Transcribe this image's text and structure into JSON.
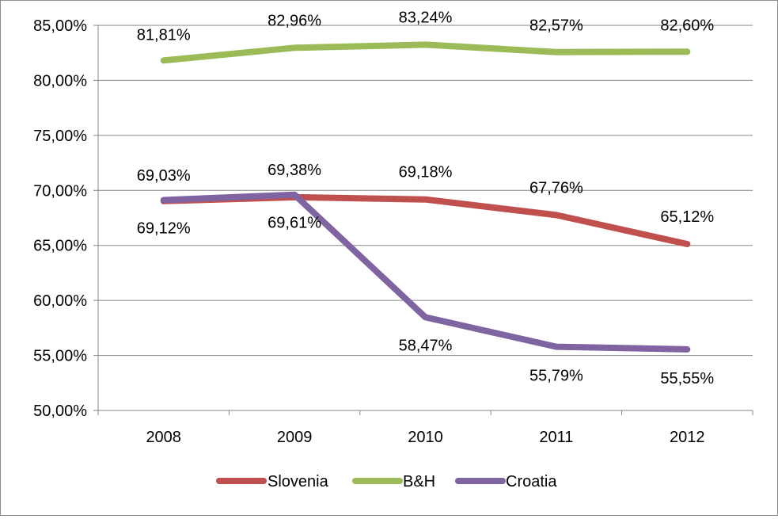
{
  "chart_data": {
    "type": "line",
    "title": "",
    "xlabel": "",
    "ylabel": "",
    "categories": [
      "2008",
      "2009",
      "2010",
      "2011",
      "2012"
    ],
    "ylim": [
      50,
      85
    ],
    "y_ticks": [
      50,
      55,
      60,
      65,
      70,
      75,
      80,
      85
    ],
    "y_tick_labels": [
      "50,00%",
      "55,00%",
      "60,00%",
      "65,00%",
      "70,00%",
      "75,00%",
      "80,00%",
      "85,00%"
    ],
    "grid": true,
    "legend_position": "bottom",
    "series": [
      {
        "name": "Slovenia",
        "color": "#c0504d",
        "values": [
          69.03,
          69.38,
          69.18,
          67.76,
          65.12
        ],
        "labels": [
          "69,03%",
          "69,38%",
          "69,18%",
          "67,76%",
          "65,12%"
        ]
      },
      {
        "name": "B&H",
        "color": "#9bbb59",
        "values": [
          81.81,
          82.96,
          83.24,
          82.57,
          82.6
        ],
        "labels": [
          "81,81%",
          "82,96%",
          "83,24%",
          "82,57%",
          "82,60%"
        ]
      },
      {
        "name": "Croatia",
        "color": "#8064a2",
        "values": [
          69.12,
          69.61,
          58.47,
          55.79,
          55.55
        ],
        "labels": [
          "69,12%",
          "69,61%",
          "58,47%",
          "55,79%",
          "55,55%"
        ]
      }
    ]
  }
}
